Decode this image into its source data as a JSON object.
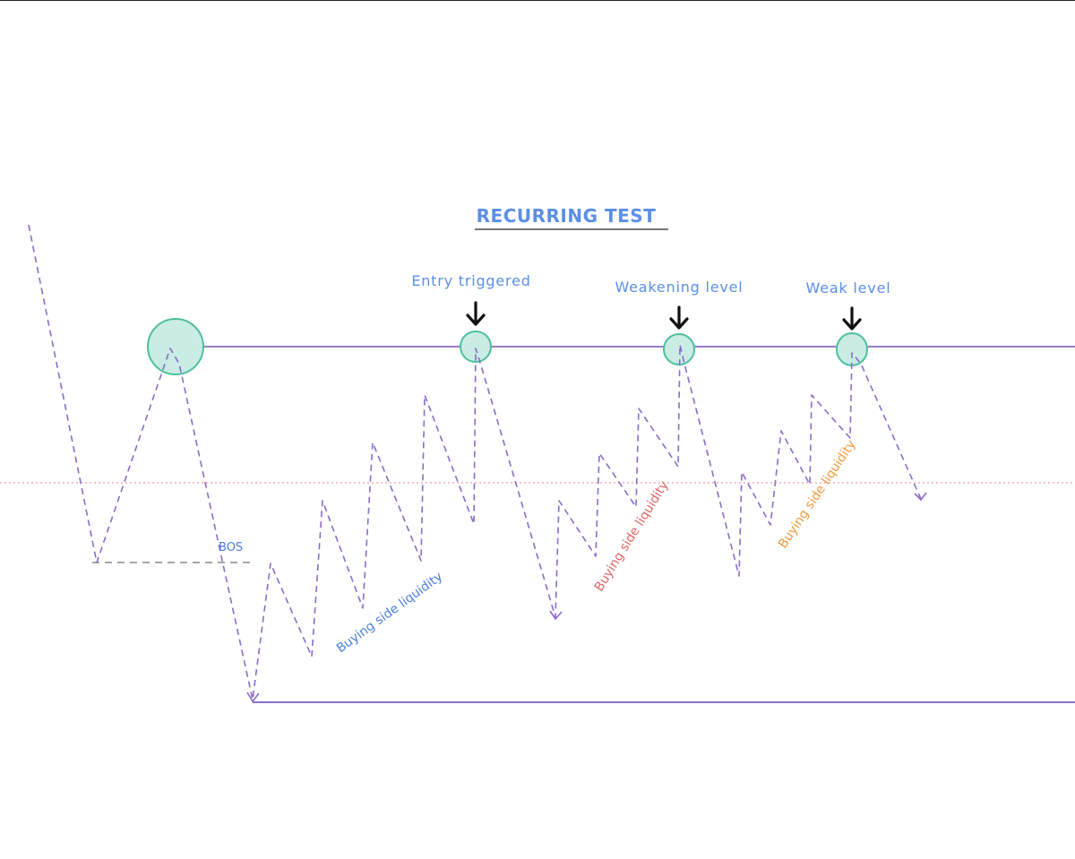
{
  "title": "RECURRING TEST",
  "labels": {
    "entry_triggered": "Entry triggered",
    "weakening_level": "Weakening level",
    "weak_level": "Weak level",
    "bos": "BOS",
    "buying_side_liquidity_1": "Buying side liquidity",
    "buying_side_liquidity_2": "Buying side liquidity",
    "buying_side_liquidity_3": "Buying side liquidity"
  },
  "icons": {
    "arrow": "arrow-down-icon",
    "circle": "circle-marker"
  },
  "colors": {
    "title": "#5b8fe6",
    "top_labels": "#5b8fe6",
    "bos": "#4a7fe0",
    "liquidity_blue": "#4a7fe0",
    "liquidity_red": "#e06666",
    "liquidity_orange": "#f09a3a",
    "price_path": "#8b6cc9",
    "resistance_line": "#7a52b3",
    "support_line": "#8d6cc6",
    "midline": "#f19a9a",
    "circle_fill": "#c9ece4",
    "circle_stroke": "#4dbf9d",
    "arrow": "#111111",
    "title_underline": "#777777"
  }
}
